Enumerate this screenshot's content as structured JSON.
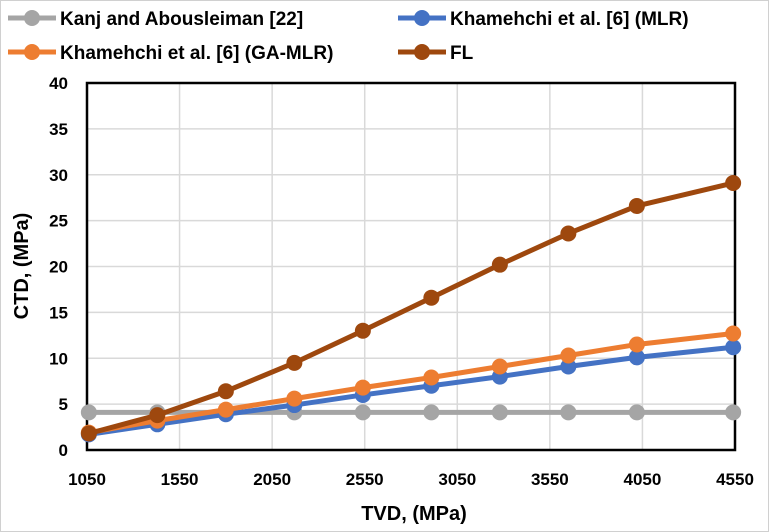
{
  "chart_data": {
    "type": "line",
    "title": "",
    "xlabel": "TVD, (MPa)",
    "ylabel": "CTD, (MPa)",
    "xlim": [
      1050,
      4550
    ],
    "ylim": [
      0,
      40
    ],
    "x_ticks": [
      "1050",
      "1550",
      "2050",
      "2550",
      "3050",
      "3550",
      "4050",
      "4550"
    ],
    "y_ticks": [
      "0",
      "5",
      "10",
      "15",
      "20",
      "25",
      "30",
      "35",
      "40"
    ],
    "grid": true,
    "legend_position": "top",
    "series": [
      {
        "name": "Kanj and Abousleiman [22]",
        "color": "#a5a5a5",
        "x": [
          1060,
          1430,
          1800,
          2170,
          2540,
          2910,
          3280,
          3650,
          4020,
          4540
        ],
        "y": [
          4.1,
          4.1,
          4.1,
          4.1,
          4.1,
          4.1,
          4.1,
          4.1,
          4.1,
          4.1
        ]
      },
      {
        "name": "Khamehchi et al. [6] (MLR)",
        "color": "#4472c4",
        "x": [
          1060,
          1430,
          1800,
          2170,
          2540,
          2910,
          3280,
          3650,
          4020,
          4540
        ],
        "y": [
          1.7,
          2.8,
          3.9,
          4.9,
          6.0,
          7.0,
          8.0,
          9.1,
          10.1,
          11.2
        ]
      },
      {
        "name": "Khamehchi et al. [6] (GA-MLR)",
        "color": "#ed7d31",
        "x": [
          1060,
          1430,
          1800,
          2170,
          2540,
          2910,
          3280,
          3650,
          4020,
          4540
        ],
        "y": [
          1.9,
          3.2,
          4.4,
          5.6,
          6.8,
          7.9,
          9.1,
          10.3,
          11.5,
          12.7
        ]
      },
      {
        "name": "FL",
        "color": "#9e480e",
        "x": [
          1060,
          1430,
          1800,
          2170,
          2540,
          2910,
          3280,
          3650,
          4020,
          4540
        ],
        "y": [
          1.8,
          3.8,
          6.4,
          9.5,
          13.0,
          16.6,
          20.2,
          23.6,
          26.6,
          29.1
        ]
      }
    ]
  }
}
